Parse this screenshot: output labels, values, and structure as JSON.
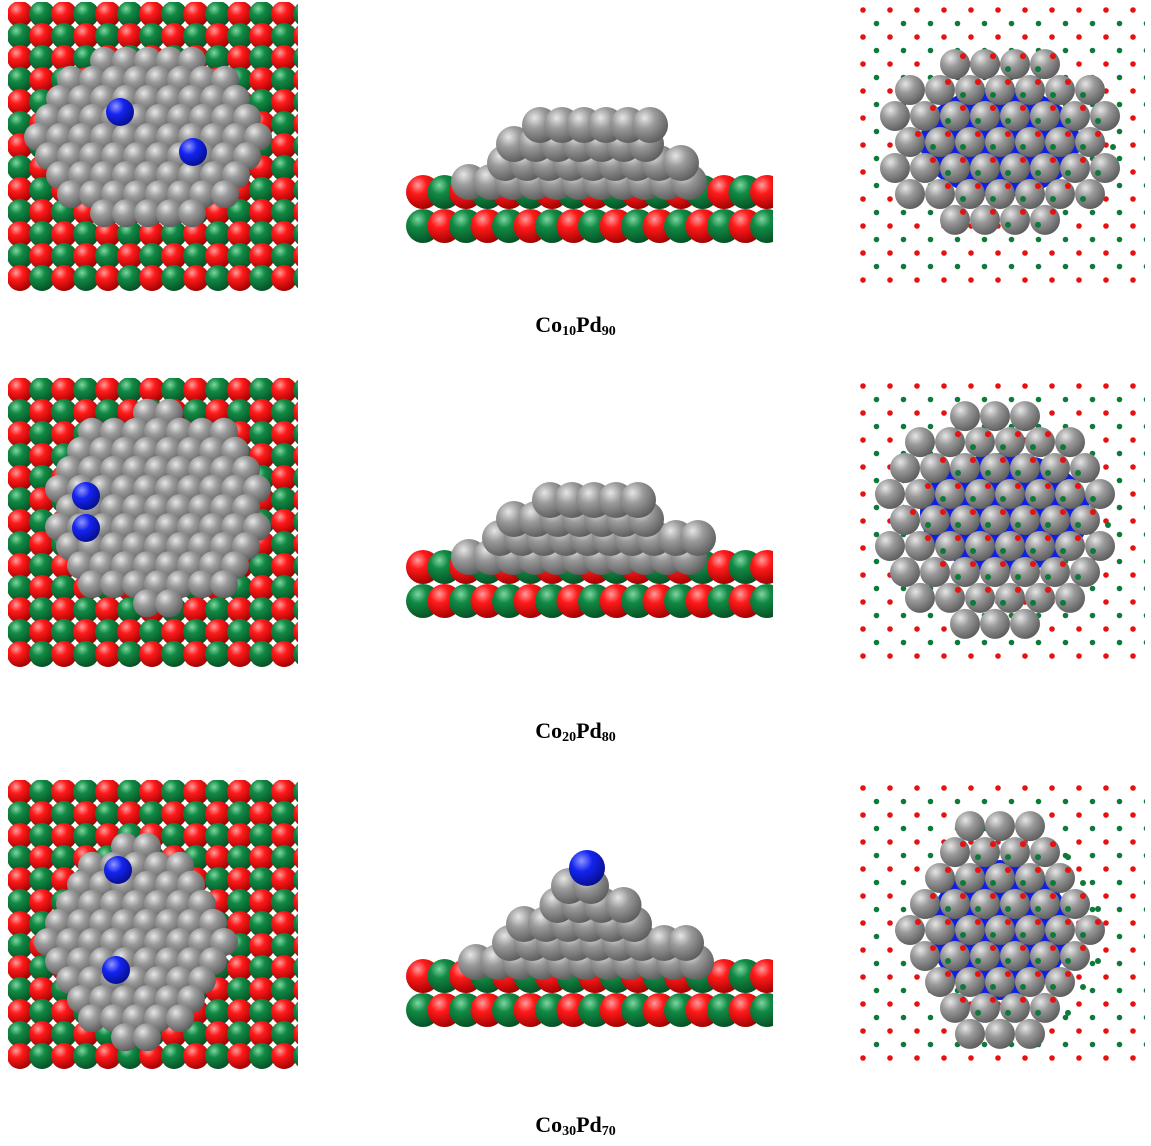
{
  "figure": {
    "rows": [
      {
        "caption": {
          "el1": "Co",
          "sub1": "10",
          "el2": "Pd",
          "sub2": "90"
        }
      },
      {
        "caption": {
          "el1": "Co",
          "sub1": "20",
          "el2": "Pd",
          "sub2": "80"
        }
      },
      {
        "caption": {
          "el1": "Co",
          "sub1": "30",
          "el2": "Pd",
          "sub2": "70"
        }
      }
    ],
    "colors": {
      "substrate_a": "#e81010",
      "substrate_b": "#0e7a3a",
      "cluster": "#8c8c8c",
      "core": "#1020e0"
    }
  }
}
